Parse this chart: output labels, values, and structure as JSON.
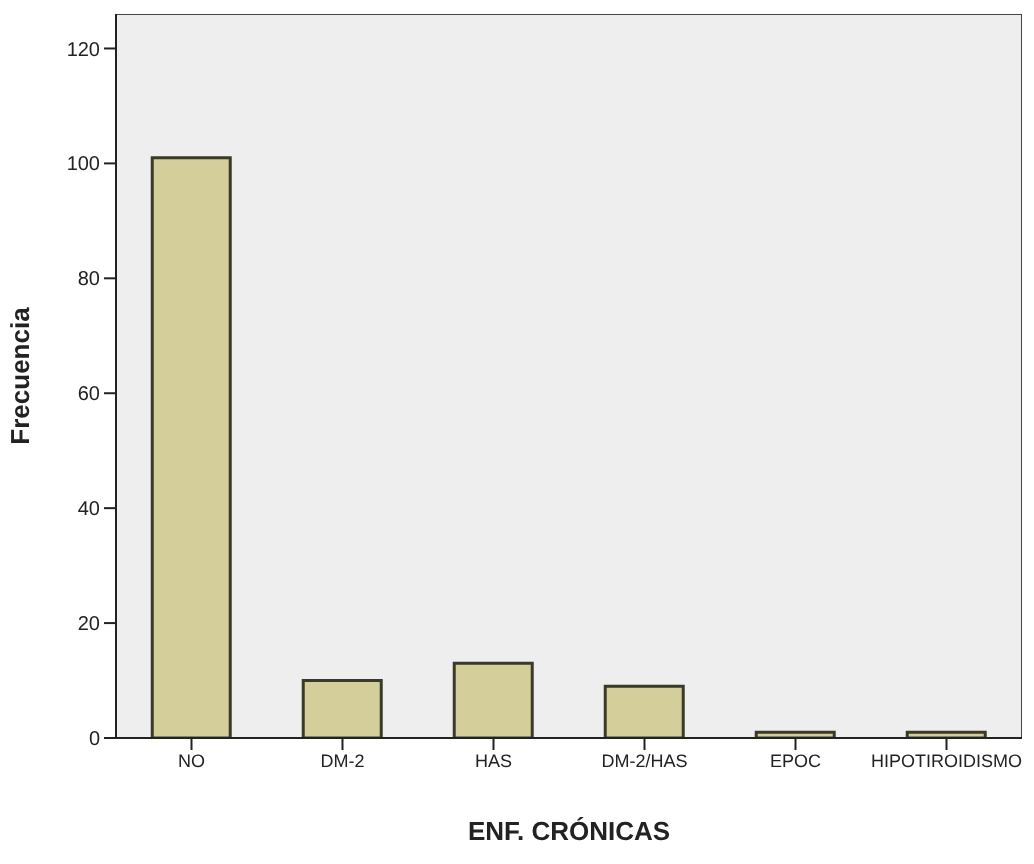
{
  "chart_data": {
    "type": "bar",
    "xlabel": "ENF. CRÓNICAS",
    "ylabel": "Frecuencia",
    "categories": [
      "NO",
      "DM-2",
      "HAS",
      "DM-2/HAS",
      "EPOC",
      "HIPOTIROIDISMO"
    ],
    "values": [
      101,
      10,
      13,
      9,
      1,
      1
    ],
    "color": "#d3ce9a",
    "ylim": [
      0,
      126
    ],
    "yticks": [
      0,
      20,
      40,
      60,
      80,
      100,
      120
    ],
    "grid": false,
    "legend": false
  }
}
